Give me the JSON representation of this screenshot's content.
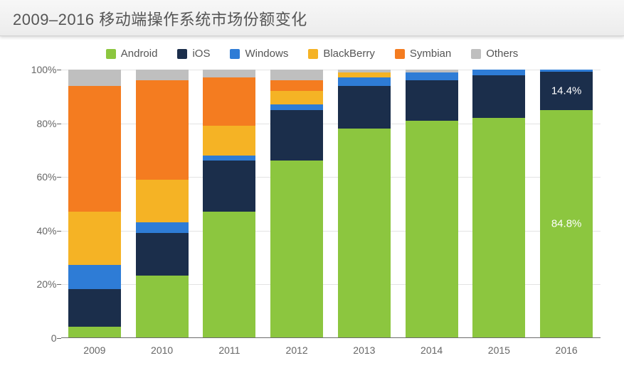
{
  "title": "2009–2016 移动端操作系统市场份额变化",
  "chart": {
    "type": "stacked-bar-100",
    "background_color": "#ffffff",
    "grid_color": "#e3e3e3",
    "axis_color": "#6b6b6b",
    "label_color": "#666666",
    "title_fontsize": 22,
    "legend_fontsize": 15,
    "axis_fontsize": 14,
    "bar_width_ratio": 0.78,
    "ylim": [
      0,
      100
    ],
    "ytick_step": 20,
    "yticks": [
      "0",
      "20%",
      "40%",
      "60%",
      "80%",
      "100%"
    ],
    "categories": [
      "2009",
      "2010",
      "2011",
      "2012",
      "2013",
      "2014",
      "2015",
      "2016"
    ],
    "series": [
      {
        "name": "Android",
        "color": "#8cc63f"
      },
      {
        "name": "iOS",
        "color": "#1b2e4b"
      },
      {
        "name": "Windows",
        "color": "#2e7cd6"
      },
      {
        "name": "BlackBerry",
        "color": "#f5b325"
      },
      {
        "name": "Symbian",
        "color": "#f47c20"
      },
      {
        "name": "Others",
        "color": "#bfbfbf"
      }
    ],
    "data": [
      {
        "Android": 4,
        "iOS": 14,
        "Windows": 9,
        "BlackBerry": 20,
        "Symbian": 47,
        "Others": 6
      },
      {
        "Android": 23,
        "iOS": 16,
        "Windows": 4,
        "BlackBerry": 16,
        "Symbian": 37,
        "Others": 4
      },
      {
        "Android": 47,
        "iOS": 19,
        "Windows": 2,
        "BlackBerry": 11,
        "Symbian": 18,
        "Others": 3
      },
      {
        "Android": 66,
        "iOS": 19,
        "Windows": 2,
        "BlackBerry": 5,
        "Symbian": 4,
        "Others": 4
      },
      {
        "Android": 78,
        "iOS": 16,
        "Windows": 3,
        "BlackBerry": 2,
        "Symbian": 0,
        "Others": 1
      },
      {
        "Android": 81,
        "iOS": 15,
        "Windows": 3,
        "BlackBerry": 0,
        "Symbian": 0,
        "Others": 1
      },
      {
        "Android": 82,
        "iOS": 16,
        "Windows": 2,
        "BlackBerry": 0,
        "Symbian": 0,
        "Others": 0
      },
      {
        "Android": 84.8,
        "iOS": 14.4,
        "Windows": 0.8,
        "BlackBerry": 0,
        "Symbian": 0,
        "Others": 0
      }
    ],
    "bar_labels": [
      {
        "year_index": 7,
        "series": "Android",
        "text": "84.8%",
        "position": "middle"
      },
      {
        "year_index": 7,
        "series": "iOS",
        "text": "14.4%",
        "position": "middle"
      }
    ]
  }
}
